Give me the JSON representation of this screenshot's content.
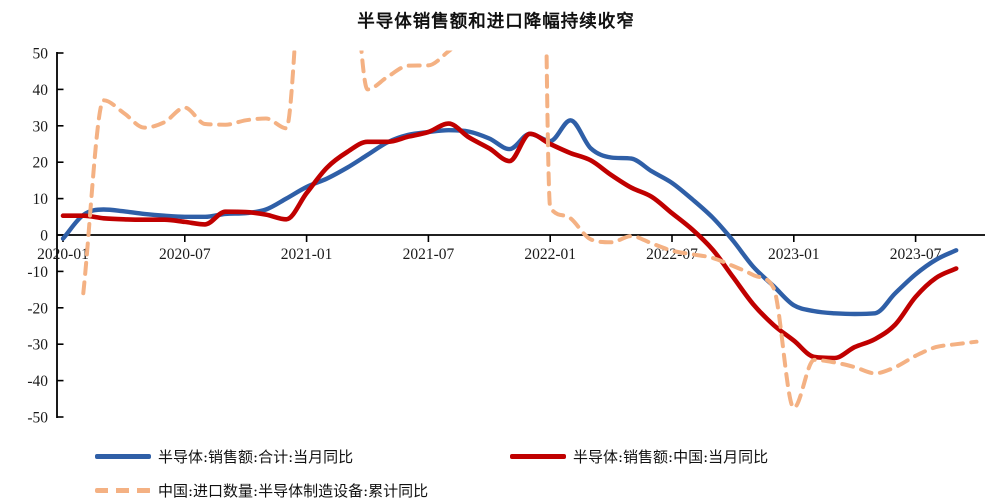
{
  "title": "半导体销售额和进口降幅持续收窄",
  "colors": {
    "series_total_blue": "#2f5fa7",
    "series_china_red": "#c00000",
    "series_import_orange": "#f4b183",
    "axis": "#000000",
    "text": "#1a1a1a"
  },
  "legend": {
    "row1_item1": "半导体:销售额:合计:当月同比",
    "row1_item2": "半导体:销售额:中国:当月同比",
    "row2_item1": "中国:进口数量:半导体制造设备:累计同比"
  },
  "chart_data": {
    "type": "line",
    "title": "半导体销售额和进口降幅持续收窄",
    "xlabel": "",
    "ylabel": "",
    "ylim": [
      -50,
      50
    ],
    "y_ticks": [
      50,
      40,
      30,
      20,
      10,
      0,
      -10,
      -20,
      -30,
      -40,
      -50
    ],
    "x_axis_tick_labels": [
      "2020-01",
      "2020-07",
      "2021-01",
      "2021-07",
      "2022-01",
      "2022-07",
      "2023-01",
      "2023-07"
    ],
    "x_tick_month_indices": [
      0,
      6,
      12,
      18,
      24,
      30,
      36,
      42
    ],
    "grid": "off (only zero baseline drawn)",
    "legend_position": "bottom-left, two rows",
    "note": "Monthly data Jan-2020 .. Oct-2023. Values read from pixels (approx.). Dashed series exceeds the +50 axis limit during 2021 and is clipped off-chart; the placeholder values 90/55/500 only encode the visible clipped spikes / vertical reset drops of the cumulative YoY series.",
    "x": [
      "2020-01",
      "2020-02",
      "2020-03",
      "2020-04",
      "2020-05",
      "2020-06",
      "2020-07",
      "2020-08",
      "2020-09",
      "2020-10",
      "2020-11",
      "2020-12",
      "2021-01",
      "2021-02",
      "2021-03",
      "2021-04",
      "2021-05",
      "2021-06",
      "2021-07",
      "2021-08",
      "2021-09",
      "2021-10",
      "2021-11",
      "2021-12",
      "2022-01",
      "2022-02",
      "2022-03",
      "2022-04",
      "2022-05",
      "2022-06",
      "2022-07",
      "2022-08",
      "2022-09",
      "2022-10",
      "2022-11",
      "2022-12",
      "2023-01",
      "2023-02",
      "2023-03",
      "2023-04",
      "2023-05",
      "2023-06",
      "2023-07",
      "2023-08",
      "2023-09",
      "2023-10"
    ],
    "series": [
      {
        "name": "半导体:销售额:合计:当月同比",
        "color": "#2f5fa7",
        "style": "solid",
        "width": 4.4,
        "values": [
          -1,
          5.5,
          7,
          6.5,
          5.8,
          5.3,
          5,
          5,
          5.8,
          6,
          7,
          10,
          13.2,
          15.5,
          18.5,
          22,
          25.5,
          27.5,
          28.3,
          28.8,
          28.4,
          26.5,
          23.6,
          27.8,
          25.8,
          31.5,
          23.8,
          21.3,
          21,
          17.5,
          14.3,
          9.8,
          4.8,
          -1.5,
          -8.7,
          -14,
          -19.3,
          -20.9,
          -21.5,
          -21.7,
          -21.5,
          -16,
          -10.8,
          -6.8,
          -4.2,
          null
        ]
      },
      {
        "name": "半导体:销售额:中国:当月同比",
        "color": "#c00000",
        "style": "solid",
        "width": 4.6,
        "values": [
          5.3,
          5.3,
          4.6,
          4.3,
          4.2,
          4.2,
          3.6,
          2.9,
          6.4,
          6.3,
          5.6,
          4.3,
          11.5,
          18.5,
          22.8,
          25.6,
          25.6,
          27,
          28.3,
          30.6,
          26.8,
          23.8,
          20.3,
          27.8,
          25,
          22.5,
          20.5,
          16.5,
          13,
          10.5,
          6,
          1.5,
          -4,
          -11.5,
          -19,
          -24.7,
          -29,
          -33.5,
          -33.8,
          -30.8,
          -28.6,
          -24.6,
          -17,
          -11.8,
          -9.2,
          null
        ]
      },
      {
        "name": "中国:进口数量:半导体制造设备:累计同比",
        "color": "#f4b183",
        "style": "dashed",
        "width": 4,
        "values": [
          null,
          -16,
          37,
          33.5,
          29.5,
          31,
          35,
          30.5,
          30.3,
          31.5,
          32,
          29.3,
          90,
          90,
          90,
          40,
          43.5,
          46.5,
          46.6,
          50.5,
          55,
          55,
          55,
          500,
          7.6,
          4.6,
          -1.2,
          -2,
          -0.3,
          -2.3,
          -4.3,
          -5.3,
          -6.3,
          -8.5,
          -11,
          -14.5,
          -47.5,
          -34.3,
          -35,
          -36.3,
          -38,
          -36.3,
          -33.2,
          -30.8,
          -30,
          -29.3
        ]
      }
    ]
  }
}
